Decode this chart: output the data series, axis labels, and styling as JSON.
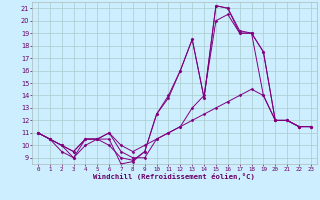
{
  "xlabel": "Windchill (Refroidissement éolien,°C)",
  "bg_color": "#cceeff",
  "line_color": "#800080",
  "grid_color": "#aacccc",
  "xlim": [
    -0.5,
    23.5
  ],
  "ylim": [
    8.5,
    21.5
  ],
  "yticks": [
    9,
    10,
    11,
    12,
    13,
    14,
    15,
    16,
    17,
    18,
    19,
    20,
    21
  ],
  "xticks": [
    0,
    1,
    2,
    3,
    4,
    5,
    6,
    7,
    8,
    9,
    10,
    11,
    12,
    13,
    14,
    15,
    16,
    17,
    18,
    19,
    20,
    21,
    22,
    23
  ],
  "series": [
    [
      0,
      11,
      1,
      10.5,
      2,
      10.0,
      3,
      9.0,
      4,
      10.5,
      5,
      10.5,
      6,
      10.0,
      7,
      9.0,
      8,
      8.8,
      9,
      9.5,
      10,
      12.5,
      11,
      13.8,
      12,
      16.0,
      13,
      18.5,
      14,
      13.8,
      15,
      21.2,
      16,
      21.0,
      17,
      19.0,
      18,
      19.0,
      19,
      17.5,
      20,
      12.0,
      21,
      12.0,
      22,
      11.5,
      23,
      11.5
    ],
    [
      0,
      11,
      1,
      10.5,
      2,
      10.0,
      3,
      9.5,
      4,
      10.5,
      5,
      10.5,
      6,
      11.0,
      7,
      10.0,
      8,
      9.5,
      9,
      10.0,
      10,
      10.5,
      11,
      11.0,
      12,
      11.5,
      13,
      12.0,
      14,
      12.5,
      15,
      13.0,
      16,
      13.5,
      17,
      14.0,
      18,
      14.5,
      19,
      14.0,
      20,
      12.0,
      21,
      12.0,
      22,
      11.5,
      23,
      11.5
    ],
    [
      0,
      11,
      1,
      10.5,
      2,
      10.0,
      3,
      9.5,
      4,
      10.5,
      5,
      10.5,
      6,
      11.0,
      7,
      9.5,
      8,
      9.0,
      9,
      9.0,
      10,
      10.5,
      11,
      11.0,
      12,
      11.5,
      13,
      13.0,
      14,
      14.0,
      15,
      20.0,
      16,
      20.5,
      17,
      19.0,
      18,
      19.0,
      19,
      14.0,
      20,
      12.0,
      21,
      12.0,
      22,
      11.5,
      23,
      11.5
    ],
    [
      0,
      11,
      1,
      10.5,
      2,
      9.5,
      3,
      9.0,
      4,
      10.0,
      5,
      10.5,
      6,
      10.5,
      7,
      8.5,
      8,
      8.7,
      9,
      9.5,
      10,
      12.5,
      11,
      14.0,
      12,
      16.0,
      13,
      18.5,
      14,
      13.8,
      15,
      21.2,
      16,
      21.0,
      17,
      19.2,
      18,
      19.0,
      19,
      17.5,
      20,
      12.0,
      21,
      12.0,
      22,
      11.5,
      23,
      11.5
    ]
  ]
}
